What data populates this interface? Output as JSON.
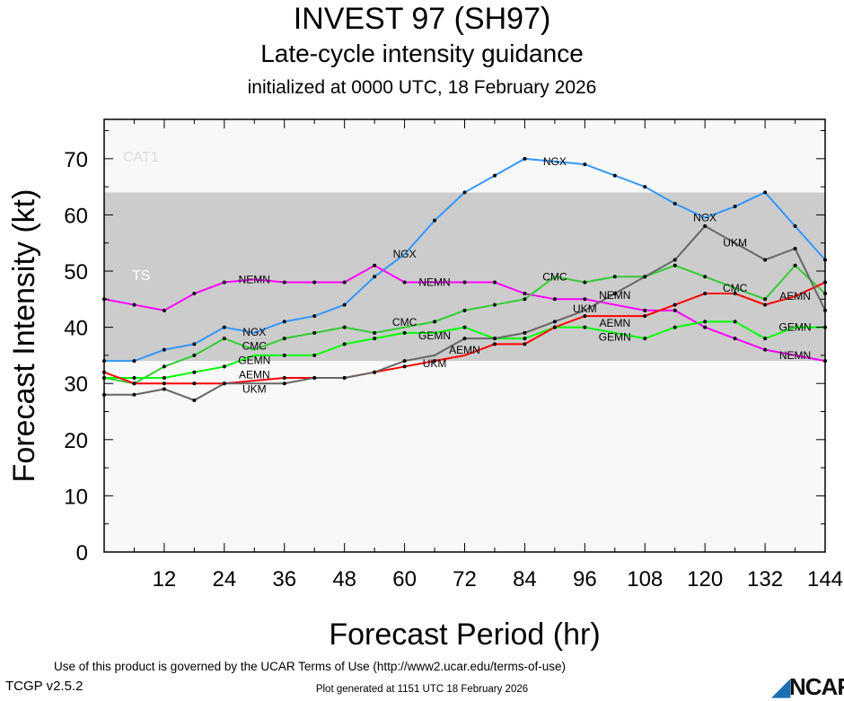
{
  "header": {
    "title": "INVEST 97 (SH97)",
    "subtitle": "Late-cycle intensity guidance",
    "init": "initialized at 0000 UTC, 18 February 2026"
  },
  "footer": {
    "terms": "Use of this product is governed by the UCAR Terms of Use (http://www2.ucar.edu/terms-of-use)",
    "generated": "Plot generated at 1151 UTC   18 February 2026",
    "version": "TCGP v2.5.2",
    "logo": "NCAR"
  },
  "chart_data": {
    "type": "line",
    "title": "INVEST 97 (SH97)",
    "xlabel": "Forecast Period (hr)",
    "ylabel": "Forecast Intensity (kt)",
    "xlim": [
      0,
      144
    ],
    "ylim": [
      0,
      77
    ],
    "xticks": [
      12,
      24,
      36,
      48,
      60,
      72,
      84,
      96,
      108,
      120,
      132,
      144
    ],
    "yticks": [
      0,
      10,
      20,
      30,
      40,
      50,
      60,
      70
    ],
    "bands": [
      {
        "name": "TS",
        "from": 34,
        "to": 64,
        "color": "#cccccc"
      },
      {
        "name": "CAT1",
        "from": 64,
        "to": 83,
        "color": "#f8f8f8"
      }
    ],
    "x": [
      0,
      6,
      12,
      18,
      24,
      30,
      36,
      42,
      48,
      54,
      60,
      66,
      72,
      78,
      84,
      90,
      96,
      102,
      108,
      114,
      120,
      126,
      132,
      138,
      144
    ],
    "series": [
      {
        "name": "NGX",
        "color": "#3399ff",
        "label_hours": [
          30,
          60,
          90,
          120
        ],
        "values": [
          34,
          34,
          36,
          37,
          40,
          39,
          41,
          42,
          44,
          49,
          53,
          59,
          64,
          67,
          70,
          69.5,
          69,
          67,
          65,
          62,
          59.5,
          61.5,
          64,
          58,
          52
        ]
      },
      {
        "name": "NEMN",
        "color": "#ff00ff",
        "label_hours": [
          30,
          66,
          102,
          138
        ],
        "values": [
          45,
          44,
          43,
          46,
          48,
          48.5,
          48,
          48,
          48,
          51,
          48,
          48,
          48,
          48,
          46,
          45,
          45,
          44,
          43,
          43,
          40,
          38,
          36,
          35,
          34
        ]
      },
      {
        "name": "CMC",
        "color": "#33cc33",
        "label_hours": [
          30,
          60,
          90,
          126
        ],
        "values": [
          31,
          30,
          33,
          35,
          38,
          36,
          38,
          39,
          40,
          39,
          40,
          41,
          43,
          44,
          45,
          49,
          48,
          49,
          49,
          51,
          49,
          47,
          45,
          51,
          46
        ]
      },
      {
        "name": "GEMN",
        "color": "#00ff00",
        "label_hours": [
          30,
          66,
          102,
          138
        ],
        "values": [
          31,
          31,
          31,
          32,
          33,
          35,
          35,
          35,
          37,
          38,
          39,
          39,
          40,
          38,
          38,
          40,
          40,
          39,
          38,
          40,
          41,
          41,
          38,
          40,
          40
        ]
      },
      {
        "name": "AEMN",
        "color": "#ff0000",
        "label_hours": [
          30,
          72,
          102,
          138
        ],
        "values": [
          32,
          30,
          30,
          30,
          30,
          30.5,
          31,
          31,
          31,
          32,
          33,
          34,
          35,
          37,
          37,
          40,
          42,
          42,
          42,
          44,
          46,
          46,
          44,
          45.5,
          48
        ]
      },
      {
        "name": "UKM",
        "color": "#666666",
        "label_hours": [
          30,
          66,
          96,
          126
        ],
        "values": [
          28,
          28,
          29,
          27,
          30,
          30,
          30,
          31,
          31,
          32,
          34,
          35,
          38,
          38,
          39,
          41,
          43,
          46,
          49,
          52,
          58,
          55,
          52,
          54,
          43
        ]
      }
    ]
  }
}
